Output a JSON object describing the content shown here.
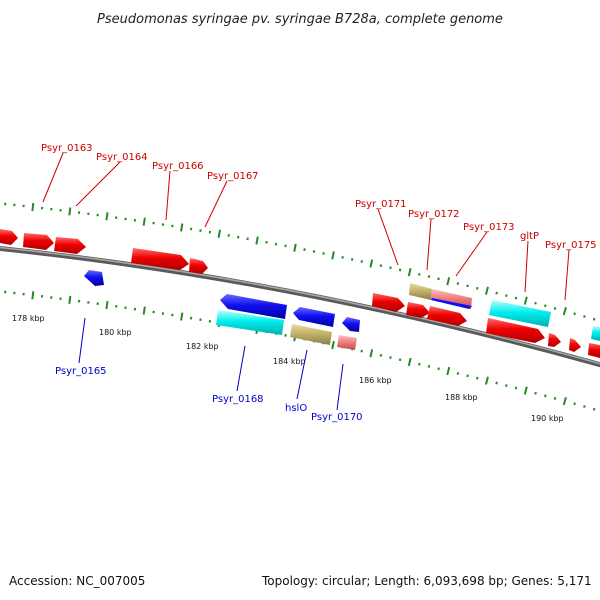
{
  "title": "Pseudomonas syringae pv. syringae B728a, complete genome",
  "footer": {
    "accession": "Accession: NC_007005",
    "summary": "Topology: circular; Length: 6,093,698 bp; Genes: 5,171"
  },
  "colors": {
    "forward_cds": "#ee0000",
    "reverse_cds": "#1010ee",
    "cyan_feature": "#00eeee",
    "khaki_feature": "#c2b46e",
    "pink_feature": "#f08080",
    "backbone": "#808080",
    "ticks": "#228b22",
    "forward_label": "#cc0000",
    "reverse_label": "#0000cc"
  },
  "scale_labels": [
    "178 kbp",
    "180 kbp",
    "182 kbp",
    "184 kbp",
    "186 kbp",
    "188 kbp",
    "190 kbp"
  ],
  "forward_labels": [
    "Psyr_0163",
    "Psyr_0164",
    "Psyr_0166",
    "Psyr_0167",
    "Psyr_0171",
    "Psyr_0172",
    "Psyr_0173",
    "gltP",
    "Psyr_0175"
  ],
  "reverse_labels": [
    "Psyr_0165",
    "Psyr_0168",
    "hslO",
    "Psyr_0170"
  ]
}
